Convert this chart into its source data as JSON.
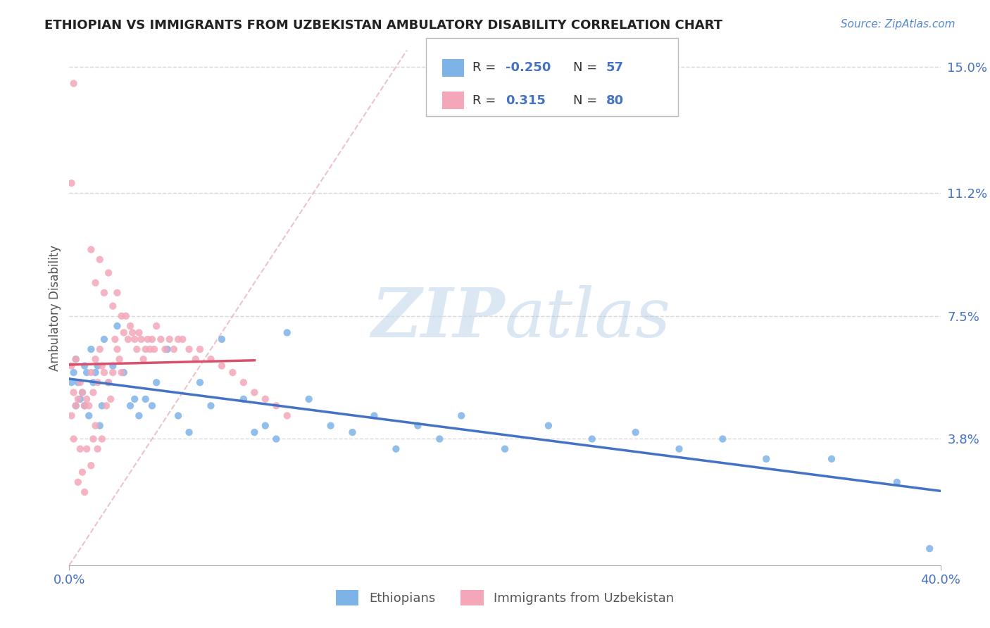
{
  "title": "ETHIOPIAN VS IMMIGRANTS FROM UZBEKISTAN AMBULATORY DISABILITY CORRELATION CHART",
  "source": "Source: ZipAtlas.com",
  "ylabel": "Ambulatory Disability",
  "xlim": [
    0.0,
    0.4
  ],
  "ylim": [
    0.0,
    0.155
  ],
  "yticks": [
    0.038,
    0.075,
    0.112,
    0.15
  ],
  "ytick_labels": [
    "3.8%",
    "7.5%",
    "11.2%",
    "15.0%"
  ],
  "xticks": [
    0.0,
    0.4
  ],
  "xtick_labels": [
    "0.0%",
    "40.0%"
  ],
  "bg_color": "#ffffff",
  "grid_color": "#c8c8c8",
  "ethiopians_color": "#7eb3e8",
  "uzbekistan_color": "#f4a7b9",
  "ethiopians_line_color": "#4472c4",
  "uzbekistan_line_color": "#d9506a",
  "diag_line_color": "#e8b4bc",
  "legend_R1": "-0.250",
  "legend_N1": "57",
  "legend_R2": "0.315",
  "legend_N2": "80",
  "ethiopians_label": "Ethiopians",
  "uzbekistan_label": "Immigrants from Uzbekistan",
  "ethiopians_x": [
    0.001,
    0.002,
    0.003,
    0.003,
    0.004,
    0.005,
    0.006,
    0.007,
    0.007,
    0.008,
    0.009,
    0.01,
    0.011,
    0.012,
    0.013,
    0.014,
    0.015,
    0.016,
    0.018,
    0.02,
    0.022,
    0.025,
    0.028,
    0.03,
    0.032,
    0.035,
    0.038,
    0.04,
    0.045,
    0.05,
    0.055,
    0.06,
    0.065,
    0.07,
    0.08,
    0.085,
    0.09,
    0.095,
    0.1,
    0.11,
    0.12,
    0.13,
    0.14,
    0.15,
    0.16,
    0.17,
    0.18,
    0.2,
    0.22,
    0.24,
    0.26,
    0.28,
    0.3,
    0.32,
    0.35,
    0.38,
    0.395
  ],
  "ethiopians_y": [
    0.055,
    0.058,
    0.062,
    0.048,
    0.055,
    0.05,
    0.052,
    0.048,
    0.06,
    0.058,
    0.045,
    0.065,
    0.055,
    0.058,
    0.06,
    0.042,
    0.048,
    0.068,
    0.055,
    0.06,
    0.072,
    0.058,
    0.048,
    0.05,
    0.045,
    0.05,
    0.048,
    0.055,
    0.065,
    0.045,
    0.04,
    0.055,
    0.048,
    0.068,
    0.05,
    0.04,
    0.042,
    0.038,
    0.07,
    0.05,
    0.042,
    0.04,
    0.045,
    0.035,
    0.042,
    0.038,
    0.045,
    0.035,
    0.042,
    0.038,
    0.04,
    0.035,
    0.038,
    0.032,
    0.032,
    0.025,
    0.005
  ],
  "uzbekistan_x": [
    0.001,
    0.001,
    0.002,
    0.002,
    0.003,
    0.003,
    0.004,
    0.004,
    0.005,
    0.005,
    0.006,
    0.006,
    0.007,
    0.007,
    0.008,
    0.008,
    0.009,
    0.01,
    0.01,
    0.011,
    0.011,
    0.012,
    0.012,
    0.013,
    0.013,
    0.014,
    0.015,
    0.015,
    0.016,
    0.017,
    0.018,
    0.019,
    0.02,
    0.021,
    0.022,
    0.023,
    0.024,
    0.025,
    0.026,
    0.027,
    0.028,
    0.029,
    0.03,
    0.031,
    0.032,
    0.033,
    0.034,
    0.035,
    0.036,
    0.037,
    0.038,
    0.039,
    0.04,
    0.042,
    0.044,
    0.046,
    0.048,
    0.05,
    0.052,
    0.055,
    0.058,
    0.06,
    0.065,
    0.07,
    0.075,
    0.08,
    0.085,
    0.09,
    0.095,
    0.1,
    0.01,
    0.012,
    0.014,
    0.016,
    0.018,
    0.02,
    0.022,
    0.024,
    0.001,
    0.002
  ],
  "uzbekistan_y": [
    0.06,
    0.045,
    0.052,
    0.038,
    0.062,
    0.048,
    0.05,
    0.025,
    0.055,
    0.035,
    0.052,
    0.028,
    0.048,
    0.022,
    0.05,
    0.035,
    0.048,
    0.058,
    0.03,
    0.052,
    0.038,
    0.062,
    0.042,
    0.055,
    0.035,
    0.065,
    0.06,
    0.038,
    0.058,
    0.048,
    0.055,
    0.05,
    0.058,
    0.068,
    0.065,
    0.062,
    0.058,
    0.07,
    0.075,
    0.068,
    0.072,
    0.07,
    0.068,
    0.065,
    0.07,
    0.068,
    0.062,
    0.065,
    0.068,
    0.065,
    0.068,
    0.065,
    0.072,
    0.068,
    0.065,
    0.068,
    0.065,
    0.068,
    0.068,
    0.065,
    0.062,
    0.065,
    0.062,
    0.06,
    0.058,
    0.055,
    0.052,
    0.05,
    0.048,
    0.045,
    0.095,
    0.085,
    0.092,
    0.082,
    0.088,
    0.078,
    0.082,
    0.075,
    0.115,
    0.145
  ]
}
